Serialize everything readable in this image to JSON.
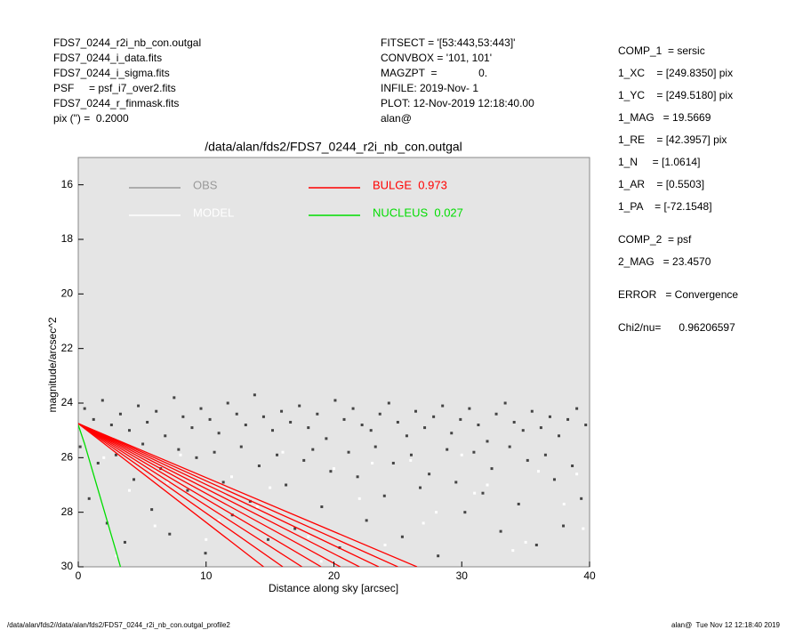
{
  "header": {
    "left": [
      "FDS7_0244_r2i_nb_con.outgal",
      "FDS7_0244_i_data.fits",
      "FDS7_0244_i_sigma.fits",
      "PSF     = psf_i7_over2.fits",
      "FDS7_0244_r_finmask.fits",
      "pix (\") =  0.2000"
    ],
    "middle": [
      "FITSECT = '[53:443,53:443]'",
      "CONVBOX = '101, 101'",
      "MAGZPT  =              0.",
      "INFILE: 2019-Nov- 1",
      "PLOT: 12-Nov-2019 12:18:40.00",
      "alan@"
    ],
    "right": [
      [
        "COMP_1  = sersic",
        "1_XC    = [249.8350] pix",
        "1_YC    = [249.5180] pix",
        "1_MAG   = 19.5669",
        "1_RE    = [42.3957] pix",
        "1_N     = [1.0614]",
        "1_AR    = [0.5503]",
        "1_PA    = [-72.1548]"
      ],
      [
        "COMP_2  = psf",
        "2_MAG   = 23.4570"
      ],
      [
        "ERROR   = Convergence"
      ],
      [
        "Chi2/nu=      0.96206597"
      ]
    ]
  },
  "footer": {
    "left": "/data/alan/fds2//data/alan/fds2/FDS7_0244_r2i_nb_con.outgal_profile2",
    "right": "alan@  Tue Nov 12 12:18:40 2019"
  },
  "chart_data": {
    "type": "scatter",
    "title": "/data/alan/fds2/FDS7_0244_r2i_nb_con.outgal",
    "x_label": "Distance along sky [arcsec]",
    "y_label": "magnitude/arcsec^2",
    "xlim": [
      0,
      40
    ],
    "ylim": [
      15,
      30
    ],
    "y_inverted": true,
    "xticks": [
      0,
      10,
      20,
      30,
      40
    ],
    "yticks": [
      16,
      18,
      20,
      22,
      24,
      26,
      28,
      30
    ],
    "series": [
      {
        "name": "OBS",
        "color": "#444444",
        "legend_color": "#999999",
        "kind": "points",
        "x": [
          0.5,
          1.2,
          1.9,
          2.6,
          3.3,
          4.0,
          4.7,
          5.4,
          6.1,
          6.8,
          7.5,
          8.2,
          8.9,
          9.6,
          10.3,
          11.0,
          11.7,
          12.4,
          13.1,
          13.8,
          14.5,
          15.2,
          15.9,
          16.6,
          17.3,
          18.0,
          18.7,
          19.4,
          20.1,
          20.8,
          21.5,
          22.2,
          22.9,
          23.6,
          24.3,
          25.0,
          25.7,
          26.4,
          27.1,
          27.8,
          28.5,
          29.2,
          29.9,
          30.6,
          31.3,
          32.0,
          32.7,
          33.4,
          34.1,
          34.8,
          35.5,
          36.2,
          36.9,
          37.6,
          38.3,
          39.0,
          39.7,
          0.15,
          0.85,
          1.55,
          2.25,
          2.95,
          3.65,
          4.35,
          5.05,
          5.75,
          6.45,
          7.15,
          7.85,
          8.55,
          9.25,
          9.95,
          10.65,
          11.35,
          12.05,
          12.75,
          13.45,
          14.15,
          14.85,
          15.55,
          16.25,
          16.95,
          17.65,
          18.35,
          19.05,
          19.75,
          20.45,
          21.15,
          21.85,
          22.55,
          23.25,
          23.95,
          24.65,
          25.35,
          26.05,
          26.75,
          27.45,
          28.15,
          28.85,
          29.55,
          30.25,
          30.95,
          31.65,
          32.35,
          33.05,
          33.75,
          34.45,
          35.15,
          35.85,
          36.55,
          37.25,
          37.95,
          38.65,
          39.35
        ],
        "values": [
          24.2,
          24.6,
          23.9,
          24.8,
          24.4,
          25.0,
          24.1,
          24.7,
          24.3,
          25.2,
          23.8,
          24.5,
          24.9,
          24.2,
          24.6,
          25.1,
          24.0,
          24.4,
          24.8,
          23.7,
          24.5,
          25.0,
          24.3,
          24.7,
          24.1,
          24.9,
          24.4,
          25.3,
          23.9,
          24.6,
          24.2,
          24.8,
          25.0,
          24.4,
          24.0,
          24.7,
          25.2,
          24.3,
          24.9,
          24.5,
          24.1,
          25.1,
          24.6,
          24.2,
          24.8,
          25.4,
          24.4,
          24.0,
          24.7,
          25.0,
          24.3,
          24.9,
          24.5,
          25.2,
          24.6,
          24.2,
          24.8,
          25.6,
          27.5,
          26.2,
          28.4,
          25.9,
          29.1,
          26.8,
          25.5,
          27.9,
          26.4,
          28.8,
          25.7,
          27.2,
          26.0,
          29.5,
          25.8,
          26.9,
          28.1,
          25.6,
          27.6,
          26.3,
          29.0,
          25.9,
          27.0,
          28.6,
          26.1,
          25.7,
          27.8,
          26.5,
          29.3,
          25.8,
          26.7,
          28.3,
          25.6,
          27.4,
          26.2,
          28.9,
          25.9,
          27.1,
          26.6,
          29.6,
          25.7,
          26.9,
          28.0,
          25.8,
          27.3,
          26.4,
          28.7,
          25.6,
          27.7,
          26.1,
          29.2,
          25.9,
          26.8,
          28.5,
          26.3,
          27.5
        ]
      },
      {
        "name": "MODEL",
        "color": "#ffffff",
        "legend_color": "#ffffff",
        "kind": "points",
        "x": [
          2,
          4,
          6,
          8,
          10,
          12,
          14,
          16,
          18,
          20,
          22,
          24,
          26,
          28,
          30,
          32,
          34,
          36,
          38,
          39.5,
          3,
          7,
          11,
          15,
          19,
          23,
          27,
          31,
          35,
          39
        ],
        "values": [
          26.0,
          27.2,
          28.5,
          25.9,
          29.0,
          26.7,
          27.8,
          25.8,
          28.9,
          26.4,
          27.5,
          29.2,
          26.1,
          28.0,
          25.9,
          27.0,
          29.4,
          26.5,
          27.7,
          28.6,
          29.6,
          26.9,
          28.3,
          27.1,
          29.8,
          26.2,
          28.4,
          27.3,
          29.1,
          26.6
        ]
      },
      {
        "name": "BULGE  0.973",
        "color": "#ff0000",
        "legend_color": "#ff0000",
        "kind": "lines",
        "lines": [
          {
            "x": [
              0,
              14.5
            ],
            "values": [
              24.75,
              30
            ]
          },
          {
            "x": [
              0,
              16
            ],
            "values": [
              24.75,
              30
            ]
          },
          {
            "x": [
              0,
              17.5
            ],
            "values": [
              24.75,
              30
            ]
          },
          {
            "x": [
              0,
              19
            ],
            "values": [
              24.75,
              30
            ]
          },
          {
            "x": [
              0,
              20.5
            ],
            "values": [
              24.75,
              30
            ]
          },
          {
            "x": [
              0,
              22
            ],
            "values": [
              24.75,
              30
            ]
          },
          {
            "x": [
              0,
              23.5
            ],
            "values": [
              24.75,
              30
            ]
          },
          {
            "x": [
              0,
              25
            ],
            "values": [
              24.75,
              30
            ]
          },
          {
            "x": [
              0,
              26.5
            ],
            "values": [
              24.75,
              30
            ]
          }
        ]
      },
      {
        "name": "NUCLEUS  0.027",
        "color": "#00dd00",
        "legend_color": "#00dd00",
        "kind": "lines",
        "lines": [
          {
            "x": [
              0,
              0.5,
              1,
              1.5,
              2,
              2.5,
              3,
              3.3
            ],
            "values": [
              24.8,
              25.5,
              26.3,
              27.1,
              27.9,
              28.7,
              29.5,
              30
            ]
          }
        ]
      }
    ]
  }
}
